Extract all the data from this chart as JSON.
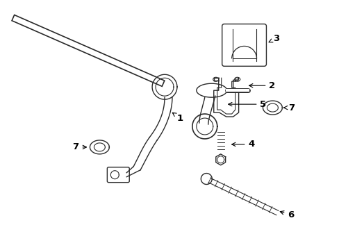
{
  "bg_color": "#ffffff",
  "line_color": "#2a2a2a",
  "figsize": [
    4.89,
    3.6
  ],
  "dpi": 100
}
